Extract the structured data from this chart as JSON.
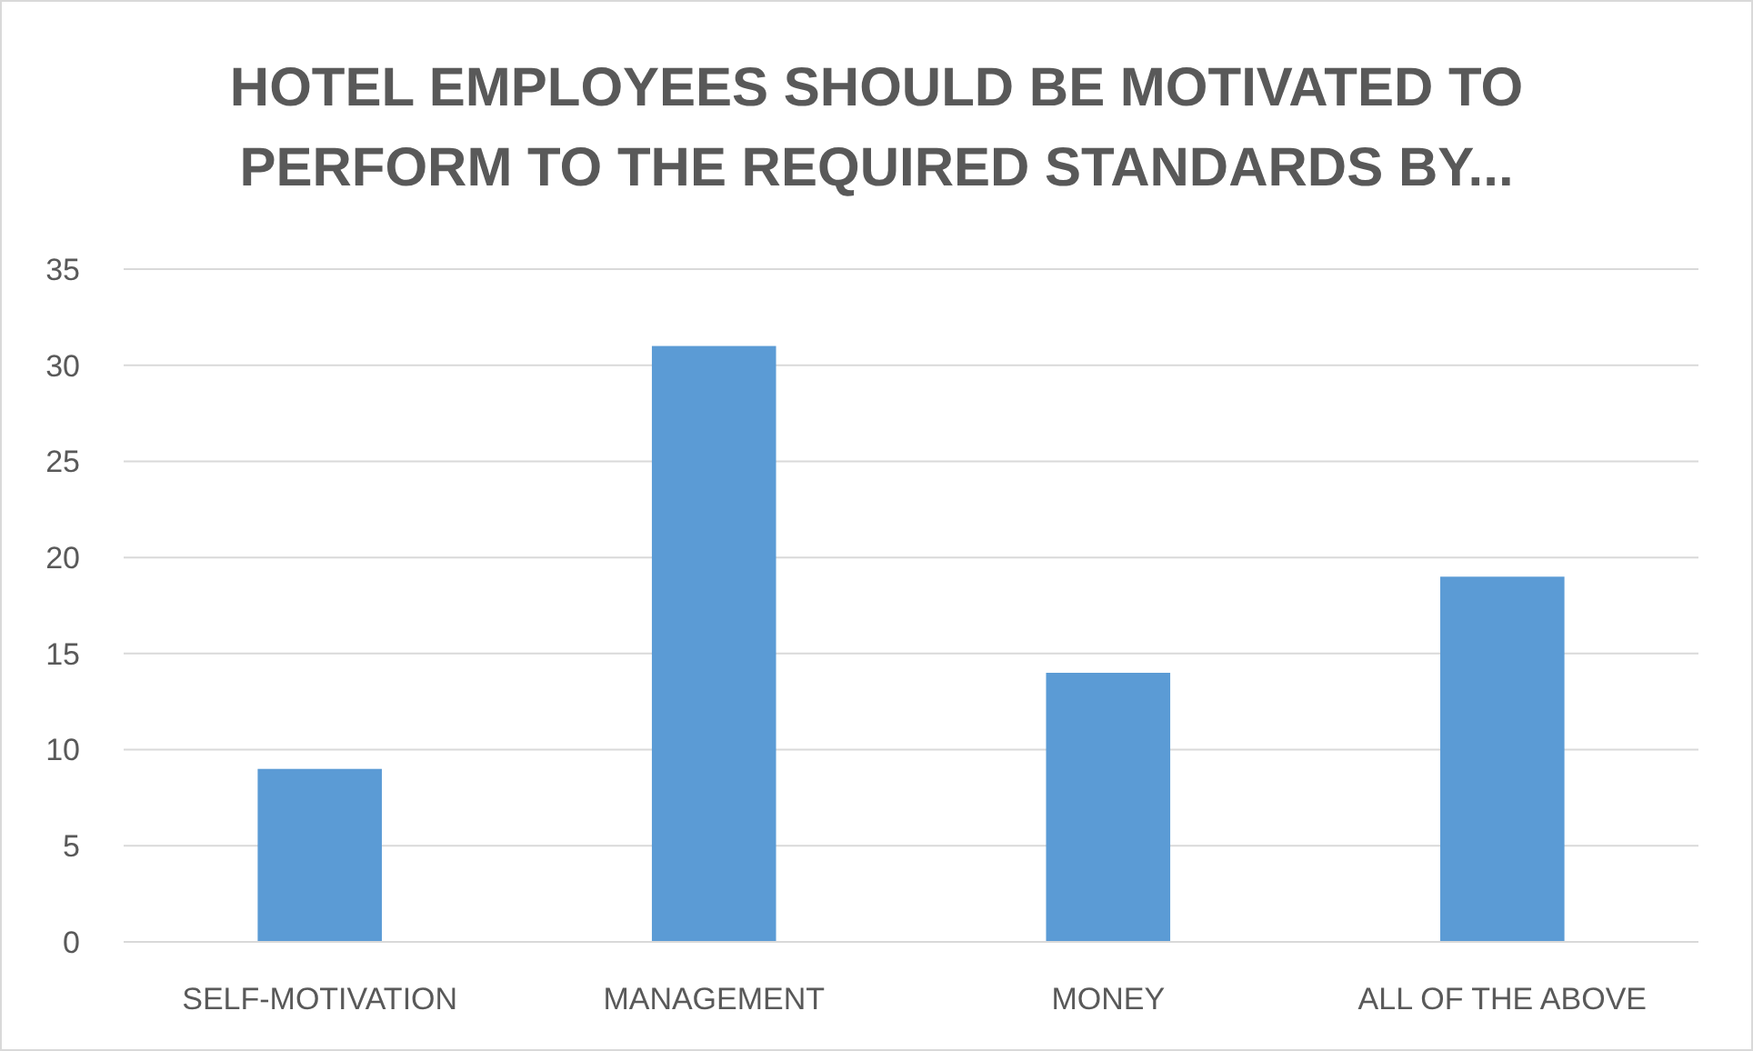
{
  "chart_data": {
    "type": "bar",
    "title": "HOTEL EMPLOYEES SHOULD BE MOTIVATED TO PERFORM TO THE REQUIRED STANDARDS BY...",
    "categories": [
      "SELF-MOTIVATION",
      "MANAGEMENT",
      "MONEY",
      "ALL OF THE ABOVE"
    ],
    "values": [
      9,
      31,
      14,
      19
    ],
    "color": "#5b9bd5",
    "ylim": [
      0,
      35
    ],
    "yticks": [
      0,
      5,
      10,
      15,
      20,
      25,
      30,
      35
    ],
    "grid": "y"
  }
}
